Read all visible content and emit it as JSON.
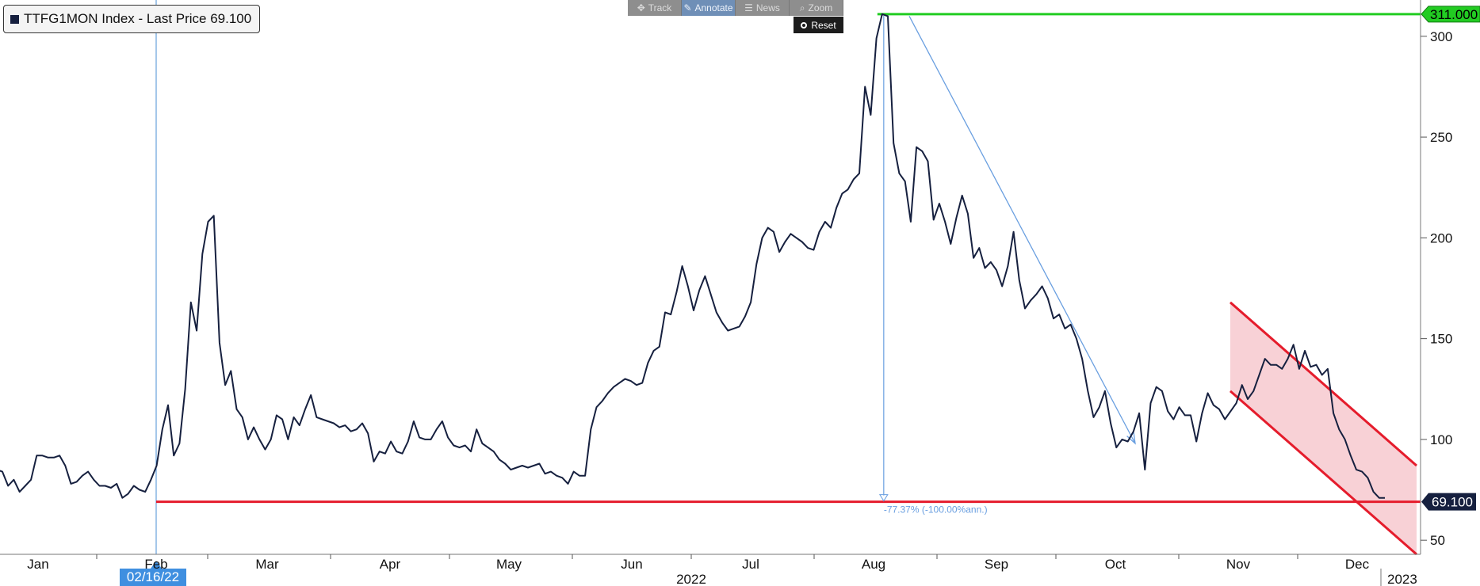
{
  "legend": {
    "label": "TTFG1MON Index - Last Price 69.100",
    "swatch_color": "#16203f"
  },
  "toolbar": {
    "track": "Track",
    "annotate": "Annotate",
    "news": "News",
    "zoom": "Zoom",
    "reset": "Reset",
    "icons": {
      "track": "crosshair-icon",
      "annotate": "pencil-icon",
      "news": "news-icon",
      "zoom": "magnifier-icon",
      "reset": "radio-icon"
    }
  },
  "cursor_date": "02/16/22",
  "chart_data": {
    "type": "line",
    "series": [
      {
        "values": [
          89,
          91,
          82,
          75,
          85,
          84,
          77,
          80,
          74,
          77,
          80,
          92,
          92,
          91,
          91,
          92,
          87,
          78,
          79,
          82,
          84,
          80,
          77,
          77,
          76,
          78,
          71,
          73,
          77,
          75,
          74,
          80,
          87,
          105,
          117,
          92,
          98,
          125,
          168,
          154,
          192,
          208,
          211,
          148,
          127,
          134,
          115,
          111,
          100,
          106,
          100,
          95,
          100,
          112,
          110,
          100,
          111,
          107,
          115,
          122,
          111,
          110,
          109,
          108,
          106,
          107,
          104,
          105,
          108,
          103,
          89,
          94,
          93,
          99,
          94,
          93,
          99,
          109,
          101,
          100,
          100,
          105,
          109,
          101,
          97,
          96,
          97,
          94,
          105,
          98,
          96,
          94,
          90,
          88,
          85,
          86,
          87,
          86,
          87,
          88,
          83,
          84,
          82,
          81,
          78,
          84,
          82,
          82,
          105,
          116,
          119,
          123,
          126,
          128,
          130,
          129,
          127,
          128,
          138,
          144,
          146,
          163,
          162,
          173,
          186,
          176,
          164,
          174,
          181,
          172,
          163,
          158,
          154,
          155,
          156,
          161,
          168,
          187,
          200,
          205,
          203,
          193,
          198,
          202,
          200,
          198,
          195,
          194,
          203,
          208,
          205,
          215,
          222,
          224,
          229,
          232,
          275,
          261,
          299,
          311,
          310,
          247,
          232,
          228,
          208,
          245,
          243,
          238,
          209,
          217,
          208,
          197,
          210,
          221,
          212,
          190,
          195,
          185,
          188,
          184,
          176,
          186,
          203,
          179,
          165,
          169,
          172,
          176,
          170,
          160,
          162,
          155,
          157,
          150,
          140,
          124,
          111,
          116,
          124,
          108,
          96,
          100,
          99,
          104,
          113,
          85,
          118,
          126,
          124,
          114,
          110,
          116,
          112,
          112,
          99,
          113,
          123,
          117,
          115,
          110,
          114,
          118,
          127,
          120,
          124,
          132,
          140,
          137,
          137,
          135,
          140,
          147,
          135,
          144,
          136,
          137,
          132,
          135,
          113,
          105,
          100,
          92,
          85,
          84,
          81,
          74,
          71,
          71
        ]
      }
    ],
    "x_ticks": [
      "Jan",
      "Feb",
      "Mar",
      "Apr",
      "May",
      "Jun",
      "Jul",
      "Aug",
      "Sep",
      "Oct",
      "Nov",
      "Dec"
    ],
    "year_labels": [
      "2022",
      "2023"
    ],
    "y_ticks": [
      50,
      100,
      150,
      200,
      250,
      300
    ],
    "ylim": [
      43,
      318
    ],
    "y_axis_side": "right",
    "last_value_label": "69.100",
    "annotations": {
      "high_line": {
        "value": 311,
        "label": "311.000",
        "color": "#22cc22"
      },
      "low_line": {
        "value": 69.1,
        "color": "#e51c2c"
      },
      "cursor_line_date": "02/16/22",
      "drawdown_label": "-77.37% (-100.00%ann.)",
      "trend_arrow": {
        "from": [
          "2022-08-25",
          310
        ],
        "to": [
          "2022-10-21",
          98
        ]
      },
      "channel": {
        "upper": [
          [
            "2022-11-14",
            168
          ],
          [
            "2022-12-31",
            87
          ]
        ],
        "lower": [
          [
            "2022-11-14",
            124
          ],
          [
            "2022-12-31",
            43
          ]
        ],
        "fill": "#f7c9cf",
        "stroke": "#e51c2c"
      }
    },
    "line_color": "#16203f"
  }
}
